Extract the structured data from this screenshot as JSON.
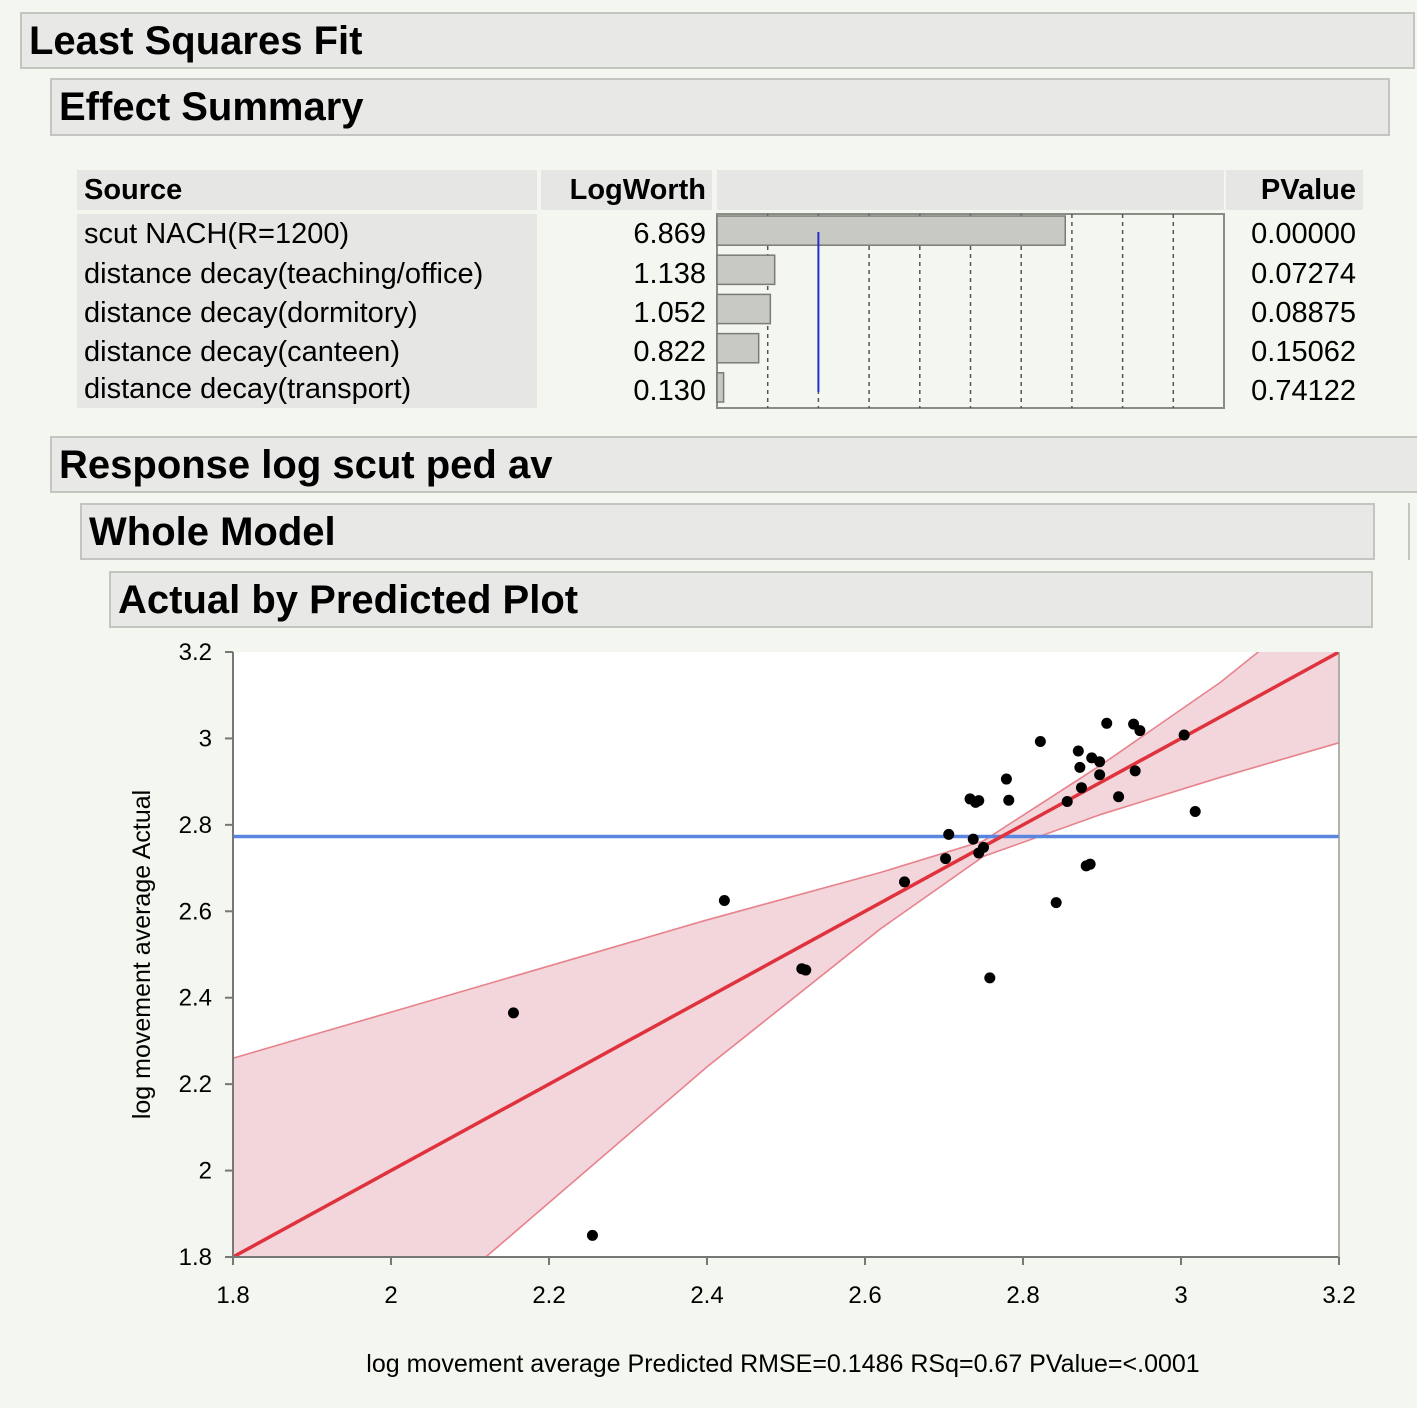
{
  "report": {
    "title": "Least Squares Fit",
    "effect_summary": {
      "title": "Effect Summary",
      "columns": {
        "source": "Source",
        "logworth": "LogWorth",
        "pvalue": "PValue"
      },
      "rows": [
        {
          "source": "scut NACH(R=1200)",
          "logworth": "6.869",
          "logworth_value": 6.869,
          "pvalue": "0.00000"
        },
        {
          "source": "distance decay(teaching/office)",
          "logworth": "1.138",
          "logworth_value": 1.138,
          "pvalue": "0.07274"
        },
        {
          "source": "distance decay(dormitory)",
          "logworth": "1.052",
          "logworth_value": 1.052,
          "pvalue": "0.08875"
        },
        {
          "source": "distance decay(canteen)",
          "logworth": "0.822",
          "logworth_value": 0.822,
          "pvalue": "0.15062"
        },
        {
          "source": "distance decay(transport)",
          "logworth": "0.130",
          "logworth_value": 0.13,
          "pvalue": "0.74122"
        }
      ],
      "logworth_bar": {
        "scale_max": 10,
        "reference_line": 2,
        "bar_color": "#c8c8c4",
        "reference_color": "#2230c8"
      }
    },
    "response": {
      "title": "Response log scut ped av"
    },
    "whole_model": {
      "title": "Whole Model"
    },
    "plot_section": {
      "title": "Actual by Predicted Plot"
    }
  },
  "chart_data": {
    "type": "scatter",
    "title": "Actual by Predicted Plot",
    "xlabel": "log movement average Predicted RMSE=0.1486 RSq=0.67 PValue=<.0001",
    "ylabel": "log movement average Actual",
    "xlim": [
      1.8,
      3.2
    ],
    "ylim": [
      1.8,
      3.2
    ],
    "x_ticks": [
      "1.8",
      "2",
      "2.2",
      "2.4",
      "2.6",
      "2.8",
      "3",
      "3.2"
    ],
    "y_ticks": [
      "1.8",
      "2",
      "2.2",
      "2.4",
      "2.6",
      "2.8",
      "3",
      "3.2"
    ],
    "grid": false,
    "mean_line": {
      "y": 2.773,
      "color": "#5b86e0"
    },
    "fit_line": {
      "x": [
        1.8,
        3.2
      ],
      "y": [
        1.8,
        3.2
      ],
      "color": "#e0323c"
    },
    "confidence_band": {
      "upper": {
        "x": [
          1.8,
          2.4,
          2.62,
          2.75,
          2.9,
          3.05,
          3.2
        ],
        "y": [
          2.26,
          2.58,
          2.69,
          2.763,
          2.94,
          3.13,
          3.35
        ]
      },
      "lower": {
        "x": [
          2.12,
          2.4,
          2.62,
          2.75,
          2.9,
          3.05,
          3.2
        ],
        "y": [
          1.8,
          2.24,
          2.56,
          2.727,
          2.825,
          2.91,
          2.99
        ]
      },
      "fill": "#f2d6dc",
      "stroke": "#e8828c"
    },
    "points": {
      "color": "#000000",
      "x": [
        2.155,
        2.255,
        2.422,
        2.52,
        2.525,
        2.65,
        2.702,
        2.706,
        2.733,
        2.737,
        2.74,
        2.744,
        2.744,
        2.75,
        2.758,
        2.779,
        2.782,
        2.822,
        2.842,
        2.856,
        2.87,
        2.872,
        2.874,
        2.88,
        2.885,
        2.887,
        2.897,
        2.897,
        2.906,
        2.921,
        2.94,
        2.942,
        2.948,
        3.004,
        3.018
      ],
      "y": [
        2.365,
        1.85,
        2.625,
        2.467,
        2.464,
        2.668,
        2.722,
        2.778,
        2.86,
        2.767,
        2.852,
        2.856,
        2.735,
        2.748,
        2.446,
        2.906,
        2.857,
        2.993,
        2.62,
        2.854,
        2.971,
        2.933,
        2.886,
        2.705,
        2.709,
        2.955,
        2.946,
        2.916,
        3.035,
        2.865,
        3.033,
        2.925,
        3.018,
        3.008,
        2.831
      ]
    }
  }
}
